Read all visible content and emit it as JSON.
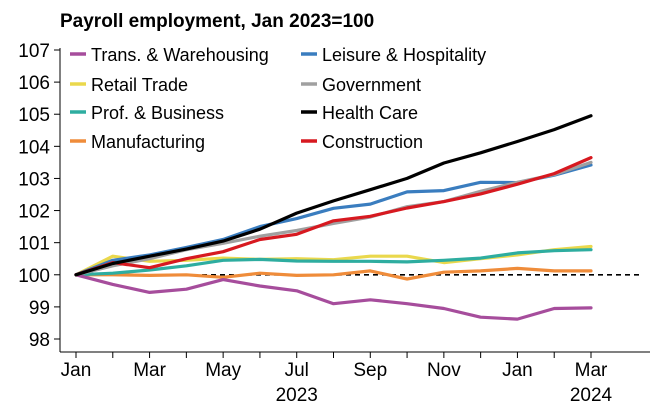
{
  "chart_data": {
    "type": "line",
    "title": "Payroll employment, Jan 2023=100",
    "xlabel": "",
    "ylabel": "",
    "ylim": [
      98,
      107
    ],
    "yticks": [
      98,
      99,
      100,
      101,
      102,
      103,
      104,
      105,
      106,
      107
    ],
    "x": [
      "2023-01",
      "2023-02",
      "2023-03",
      "2023-04",
      "2023-05",
      "2023-06",
      "2023-07",
      "2023-08",
      "2023-09",
      "2023-10",
      "2023-11",
      "2023-12",
      "2024-01",
      "2024-02",
      "2024-03"
    ],
    "xticks": [
      {
        "x": "2023-01",
        "label": "Jan"
      },
      {
        "x": "2023-03",
        "label": "Mar"
      },
      {
        "x": "2023-05",
        "label": "May"
      },
      {
        "x": "2023-07",
        "label": "Jul"
      },
      {
        "x": "2023-09",
        "label": "Sep"
      },
      {
        "x": "2023-11",
        "label": "Nov"
      },
      {
        "x": "2024-01",
        "label": "Jan"
      },
      {
        "x": "2024-03",
        "label": "Mar"
      }
    ],
    "year_labels": [
      {
        "x": "2023-07",
        "label": "2023"
      },
      {
        "x": "2024-03",
        "label": "2024"
      }
    ],
    "reference_line": {
      "y": 100,
      "style": "dashed",
      "color": "#000000"
    },
    "grid": false,
    "legend_position": "top-left, two columns",
    "series": [
      {
        "name": "Trans. & Warehousing",
        "color": "#a64d9c",
        "values": [
          100,
          99.7,
          99.45,
          99.55,
          99.85,
          99.65,
          99.5,
          99.1,
          99.22,
          99.1,
          98.95,
          98.68,
          98.62,
          98.95,
          98.97
        ]
      },
      {
        "name": "Leisure & Hospitality",
        "color": "#3a7dbf",
        "values": [
          100,
          100.45,
          100.62,
          100.85,
          101.1,
          101.5,
          101.75,
          102.07,
          102.2,
          102.58,
          102.62,
          102.88,
          102.87,
          103.1,
          103.42
        ]
      },
      {
        "name": "Retail Trade",
        "color": "#ead84c",
        "values": [
          100,
          100.58,
          100.42,
          100.45,
          100.52,
          100.48,
          100.5,
          100.47,
          100.58,
          100.58,
          100.38,
          100.5,
          100.62,
          100.78,
          100.88
        ]
      },
      {
        "name": "Government",
        "color": "#a0a0a0",
        "values": [
          100,
          100.28,
          100.5,
          100.78,
          100.98,
          101.2,
          101.38,
          101.6,
          101.8,
          102.12,
          102.28,
          102.6,
          102.88,
          103.12,
          103.5
        ]
      },
      {
        "name": "Prof. & Business",
        "color": "#2eada0",
        "values": [
          100,
          100.05,
          100.15,
          100.28,
          100.45,
          100.48,
          100.43,
          100.42,
          100.42,
          100.4,
          100.45,
          100.52,
          100.68,
          100.75,
          100.78
        ]
      },
      {
        "name": "Health Care",
        "color": "#000000",
        "values": [
          100,
          100.35,
          100.58,
          100.8,
          101.05,
          101.42,
          101.92,
          102.3,
          102.65,
          103.0,
          103.48,
          103.8,
          104.15,
          104.52,
          104.95
        ]
      },
      {
        "name": "Manufacturing",
        "color": "#ef8c3a",
        "values": [
          100,
          100.0,
          99.98,
          100.0,
          99.92,
          100.05,
          99.98,
          100.0,
          100.12,
          99.87,
          100.08,
          100.12,
          100.2,
          100.12,
          100.12
        ]
      },
      {
        "name": "Construction",
        "color": "#d71920",
        "values": [
          100,
          100.38,
          100.22,
          100.5,
          100.72,
          101.1,
          101.26,
          101.68,
          101.82,
          102.08,
          102.28,
          102.52,
          102.82,
          103.15,
          103.65
        ]
      }
    ]
  }
}
